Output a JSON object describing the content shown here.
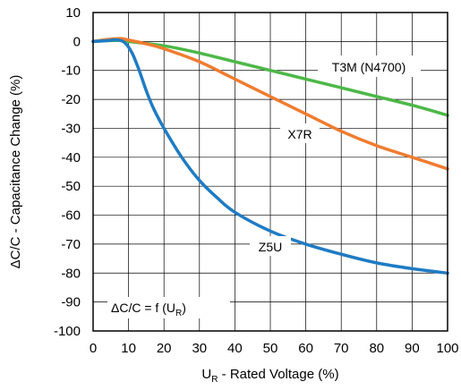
{
  "chart_data": {
    "type": "line",
    "xlabel_main": "U",
    "xlabel_sub": "R",
    "xlabel_rest": " - Rated Voltage (%)",
    "ylabel": "ΔC/C - Capacitance Change (%)",
    "xlim": [
      0,
      100
    ],
    "ylim": [
      -100,
      10
    ],
    "xticks": [
      "0",
      "10",
      "20",
      "30",
      "40",
      "50",
      "60",
      "70",
      "80",
      "90",
      "100"
    ],
    "yticks": [
      "10",
      "0",
      "-10",
      "-20",
      "-30",
      "-40",
      "-50",
      "-60",
      "-70",
      "-80",
      "-90",
      "-100"
    ],
    "grid": true,
    "annotation": {
      "main": "ΔC/C = f (U",
      "sub": "R",
      "end": ")"
    },
    "series": [
      {
        "name": "T3M (N4700)",
        "color": "#4db848",
        "x": [
          0,
          5,
          8,
          10,
          20,
          30,
          40,
          50,
          60,
          70,
          80,
          90,
          100
        ],
        "y": [
          0,
          0.3,
          0.3,
          0,
          -1.5,
          -4,
          -7,
          -10,
          -13,
          -16,
          -19,
          -22,
          -25.5
        ]
      },
      {
        "name": "X7R",
        "color": "#f07c30",
        "x": [
          0,
          5,
          8,
          10,
          15,
          20,
          30,
          40,
          50,
          60,
          70,
          80,
          90,
          100
        ],
        "y": [
          0,
          0.8,
          1,
          0.5,
          -0.8,
          -2.5,
          -7,
          -13,
          -19,
          -25,
          -31,
          -36,
          -40,
          -44
        ]
      },
      {
        "name": "Z5U",
        "color": "#1f7bc4",
        "x": [
          0,
          4,
          7,
          9,
          11,
          13,
          15,
          17,
          20,
          25,
          30,
          35,
          40,
          50,
          60,
          70,
          80,
          90,
          100
        ],
        "y": [
          0,
          0.3,
          0.5,
          -0.5,
          -4,
          -10,
          -17,
          -23,
          -30,
          -40,
          -48,
          -54,
          -59,
          -65.5,
          -70,
          -73.5,
          -76.5,
          -78.5,
          -80
        ]
      }
    ]
  }
}
